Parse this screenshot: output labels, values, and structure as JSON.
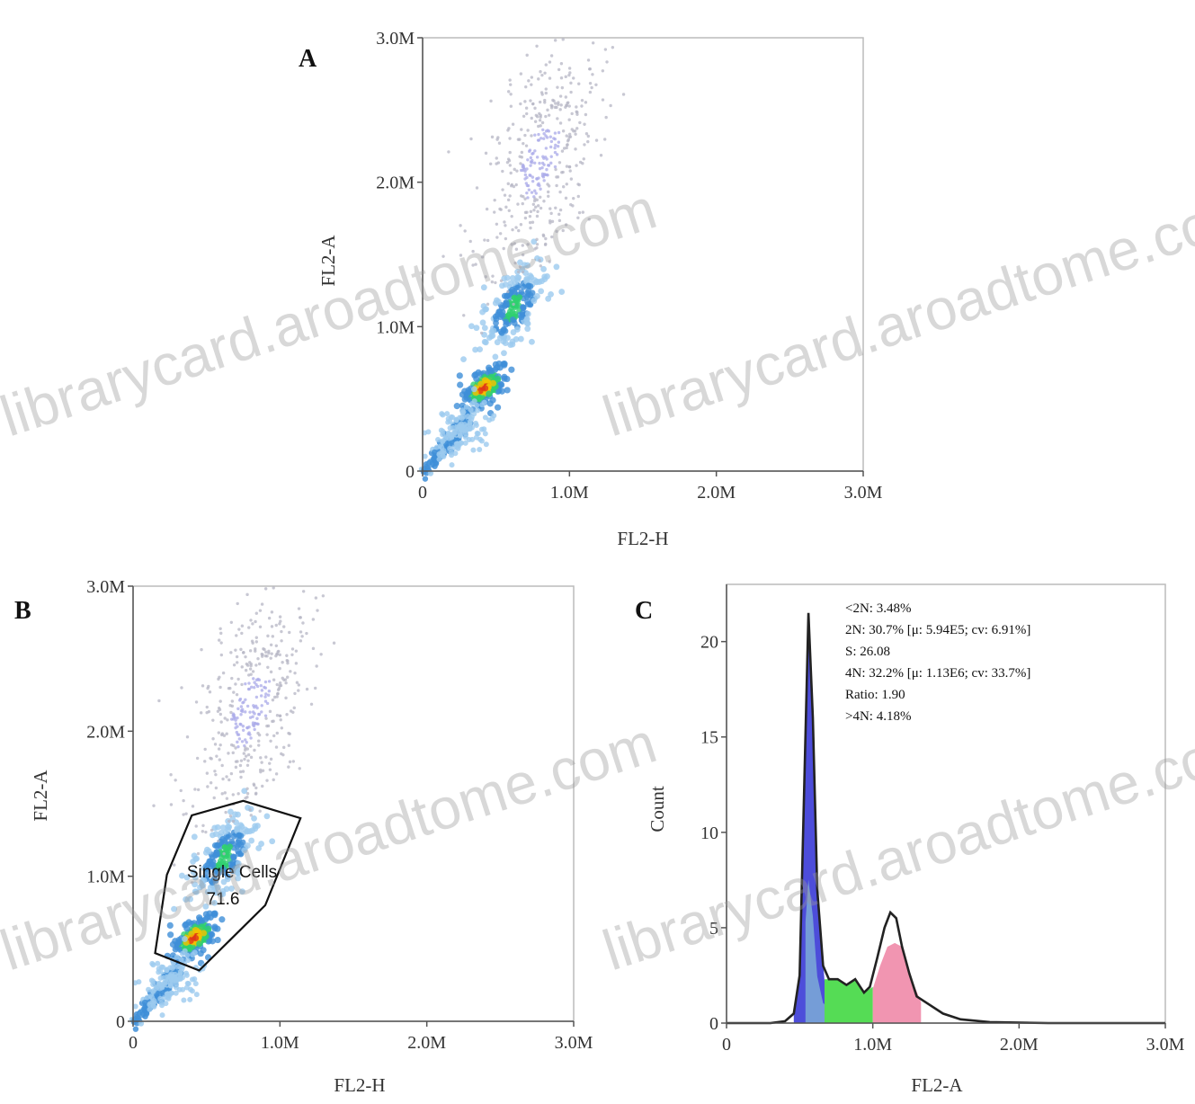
{
  "chart_data": [
    {
      "id": "A",
      "type": "scatter",
      "panel_label": "A",
      "xlabel": "FL2-H",
      "ylabel": "FL2-A",
      "xlim": [
        0,
        3000000
      ],
      "ylim": [
        0,
        3000000
      ],
      "xticks": [
        {
          "value": 0,
          "label": "0"
        },
        {
          "value": 1000000,
          "label": "1.0M"
        },
        {
          "value": 2000000,
          "label": "2.0M"
        },
        {
          "value": 3000000,
          "label": "3.0M"
        }
      ],
      "yticks": [
        {
          "value": 0,
          "label": "0"
        },
        {
          "value": 1000000,
          "label": "1.0M"
        },
        {
          "value": 2000000,
          "label": "2.0M"
        },
        {
          "value": 3000000,
          "label": "3.0M"
        }
      ],
      "density_clusters": [
        {
          "x": 420000,
          "y": 580000,
          "sx": 60000,
          "sy": 70000,
          "n": 180,
          "level": "high"
        },
        {
          "x": 620000,
          "y": 1130000,
          "sx": 90000,
          "sy": 140000,
          "n": 220,
          "level": "mid"
        },
        {
          "x": 240000,
          "y": 260000,
          "sx": 110000,
          "sy": 120000,
          "n": 120,
          "level": "low"
        },
        {
          "x": 800000,
          "y": 2150000,
          "sx": 170000,
          "sy": 380000,
          "n": 420,
          "level": "sparse"
        }
      ]
    },
    {
      "id": "B",
      "type": "scatter",
      "panel_label": "B",
      "xlabel": "FL2-H",
      "ylabel": "FL2-A",
      "xlim": [
        0,
        3000000
      ],
      "ylim": [
        0,
        3000000
      ],
      "xticks": [
        {
          "value": 0,
          "label": "0"
        },
        {
          "value": 1000000,
          "label": "1.0M"
        },
        {
          "value": 2000000,
          "label": "2.0M"
        },
        {
          "value": 3000000,
          "label": "3.0M"
        }
      ],
      "yticks": [
        {
          "value": 0,
          "label": "0"
        },
        {
          "value": 1000000,
          "label": "1.0M"
        },
        {
          "value": 2000000,
          "label": "2.0M"
        },
        {
          "value": 3000000,
          "label": "3.0M"
        }
      ],
      "density_clusters": [
        {
          "x": 420000,
          "y": 580000,
          "sx": 60000,
          "sy": 70000,
          "n": 180,
          "level": "high"
        },
        {
          "x": 620000,
          "y": 1130000,
          "sx": 90000,
          "sy": 140000,
          "n": 220,
          "level": "mid"
        },
        {
          "x": 240000,
          "y": 260000,
          "sx": 110000,
          "sy": 120000,
          "n": 120,
          "level": "low"
        },
        {
          "x": 800000,
          "y": 2150000,
          "sx": 170000,
          "sy": 380000,
          "n": 420,
          "level": "sparse"
        }
      ],
      "gate": {
        "name": "Single Cells",
        "value": "71.6",
        "polygon": [
          [
            400000,
            1420000
          ],
          [
            750000,
            1520000
          ],
          [
            1140000,
            1400000
          ],
          [
            900000,
            800000
          ],
          [
            450000,
            350000
          ],
          [
            150000,
            470000
          ],
          [
            230000,
            1010000
          ]
        ]
      }
    },
    {
      "id": "C",
      "type": "area",
      "panel_label": "C",
      "xlabel": "FL2-A",
      "ylabel": "Count",
      "xlim": [
        0,
        3000000
      ],
      "ylim": [
        0,
        23
      ],
      "xticks": [
        {
          "value": 0,
          "label": "0"
        },
        {
          "value": 1000000,
          "label": "1.0M"
        },
        {
          "value": 2000000,
          "label": "2.0M"
        },
        {
          "value": 3000000,
          "label": "3.0M"
        }
      ],
      "yticks": [
        {
          "value": 0,
          "label": "0"
        },
        {
          "value": 5,
          "label": "5"
        },
        {
          "value": 10,
          "label": "10"
        },
        {
          "value": 15,
          "label": "15"
        },
        {
          "value": 20,
          "label": "20"
        }
      ],
      "histogram": {
        "x": [
          0,
          300000,
          400000,
          460000,
          500000,
          530000,
          560000,
          590000,
          620000,
          660000,
          700000,
          760000,
          820000,
          880000,
          940000,
          980000,
          1030000,
          1080000,
          1120000,
          1160000,
          1200000,
          1250000,
          1300000,
          1380000,
          1480000,
          1600000,
          1800000,
          2200000,
          3000000
        ],
        "y": [
          0,
          0,
          0.1,
          0.5,
          2.5,
          12,
          21.5,
          16,
          7,
          3,
          2.3,
          2.3,
          2.0,
          2.3,
          1.6,
          1.9,
          3.4,
          5.0,
          5.8,
          5.5,
          4.0,
          2.6,
          1.4,
          1.0,
          0.5,
          0.2,
          0.05,
          0,
          0
        ]
      },
      "regions": [
        {
          "name": "2N",
          "x_range": [
            460000,
            670000
          ],
          "color": "#3a3ad6",
          "fit": {
            "x": [
              460000,
              500000,
              530000,
              560000,
              590000,
              620000,
              670000
            ],
            "y": [
              0.4,
              2.5,
              12,
              21.5,
              16,
              7,
              2.2
            ]
          }
        },
        {
          "name": "2N-shoulder",
          "x_range": [
            540000,
            670000
          ],
          "color": "#7aa6d6"
        },
        {
          "name": "S",
          "x_range": [
            670000,
            1000000
          ],
          "color": "#43d843",
          "fit": {
            "x": [
              670000,
              760000,
              820000,
              880000,
              940000,
              1000000
            ],
            "y": [
              2.3,
              2.3,
              2.0,
              2.3,
              1.6,
              1.9
            ]
          }
        },
        {
          "name": "4N",
          "x_range": [
            1000000,
            1330000
          ],
          "color": "#f08aa8",
          "fit": {
            "x": [
              1000000,
              1050000,
              1100000,
              1150000,
              1200000,
              1250000,
              1330000
            ],
            "y": [
              1.8,
              3.0,
              4.0,
              4.2,
              4.0,
              2.6,
              1.1
            ]
          }
        }
      ],
      "stats": [
        "<2N: 3.48%",
        "2N: 30.7% [μ: 5.94E5; cv: 6.91%]",
        "S: 26.08",
        "4N: 32.2% [μ: 1.13E6; cv: 33.7%]",
        "Ratio: 1.90",
        ">4N: 4.18%"
      ]
    }
  ],
  "watermark": {
    "text": "librarycard.aroadtome.com"
  },
  "colors": {
    "sparse": "#b5b5c4",
    "low": "#9ccbef",
    "mid": "#3f8fd8",
    "mid_core": "#2fcf6f",
    "high": "#f2c200",
    "high_core": "#e03818",
    "gate": "#111111",
    "hist_line": "#222222"
  }
}
